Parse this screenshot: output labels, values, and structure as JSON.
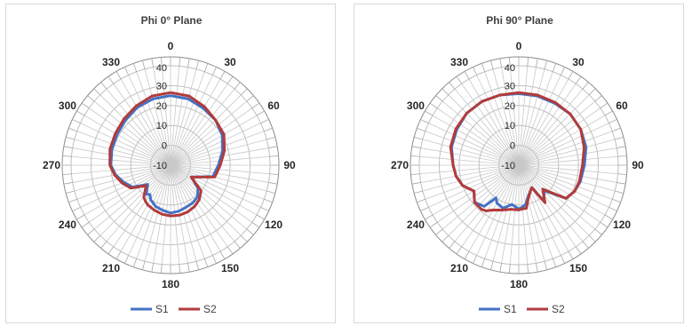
{
  "chart_data": [
    {
      "type": "polar-line",
      "title": "Phi 0° Plane",
      "angle_ticks": [
        "0",
        "30",
        "60",
        "90",
        "120",
        "150",
        "180",
        "210",
        "240",
        "270",
        "300",
        "330"
      ],
      "radial_ticks": [
        "-10",
        "0",
        "10",
        "20",
        "30",
        "40"
      ],
      "rlim": [
        -10,
        40
      ],
      "grid": true,
      "legend": "bottom",
      "angles_deg": [
        0,
        15,
        30,
        45,
        60,
        75,
        90,
        105,
        120,
        130,
        140,
        150,
        160,
        170,
        180,
        190,
        200,
        210,
        215,
        220,
        230,
        240,
        250,
        260,
        270,
        285,
        300,
        315,
        330,
        345,
        360
      ],
      "series": [
        {
          "name": "S1",
          "color": "#4472c4",
          "values": [
            25,
            24.5,
            23,
            22,
            20,
            17,
            14,
            12,
            2,
            8,
            11,
            12,
            12.5,
            13.5,
            14,
            13,
            12,
            10,
            8,
            9,
            5,
            12,
            15,
            18,
            20,
            20.5,
            21,
            22,
            23.5,
            24.5,
            25
          ]
        },
        {
          "name": "S2",
          "color": "#b23b3b",
          "values": [
            26.5,
            26,
            24,
            22,
            21,
            18,
            15,
            13,
            2,
            10,
            12.5,
            14,
            15,
            15.5,
            15.5,
            15,
            14,
            13,
            12,
            11,
            6,
            13,
            16,
            18.5,
            20.5,
            21.5,
            22,
            23,
            24.5,
            26,
            26.5
          ]
        }
      ]
    },
    {
      "type": "polar-line",
      "title": "Phi 90° Plane",
      "angle_ticks": [
        "0",
        "30",
        "60",
        "90",
        "120",
        "150",
        "180",
        "210",
        "240",
        "270",
        "300",
        "330"
      ],
      "radial_ticks": [
        "-10",
        "0",
        "10",
        "20",
        "30",
        "40"
      ],
      "rlim": [
        -10,
        40
      ],
      "grid": true,
      "legend": "bottom",
      "angles_deg": [
        0,
        15,
        30,
        45,
        60,
        75,
        90,
        105,
        115,
        125,
        135,
        145,
        150,
        155,
        165,
        170,
        175,
        180,
        190,
        200,
        210,
        215,
        220,
        230,
        240,
        250,
        260,
        270,
        285,
        300,
        315,
        330,
        345,
        360
      ],
      "series": [
        {
          "name": "S1",
          "color": "#4472c4",
          "values": [
            26,
            26,
            26,
            26.5,
            26,
            25,
            23,
            22,
            21,
            19,
            8,
            12,
            3,
            4,
            7,
            10,
            11,
            12,
            10,
            13,
            12,
            10,
            17,
            19,
            16,
            20,
            22,
            23,
            25,
            26,
            27,
            27,
            26.5,
            26
          ]
        },
        {
          "name": "S2",
          "color": "#b23b3b",
          "values": [
            26.5,
            26.5,
            26.5,
            26.5,
            26,
            24,
            22,
            21.5,
            21,
            19,
            7,
            13,
            3,
            4,
            8,
            12,
            12,
            12.5,
            12.5,
            14,
            16,
            18,
            19,
            19,
            16,
            20,
            22,
            23,
            25.5,
            26.5,
            27,
            27,
            26.5,
            26.5
          ]
        }
      ]
    }
  ]
}
